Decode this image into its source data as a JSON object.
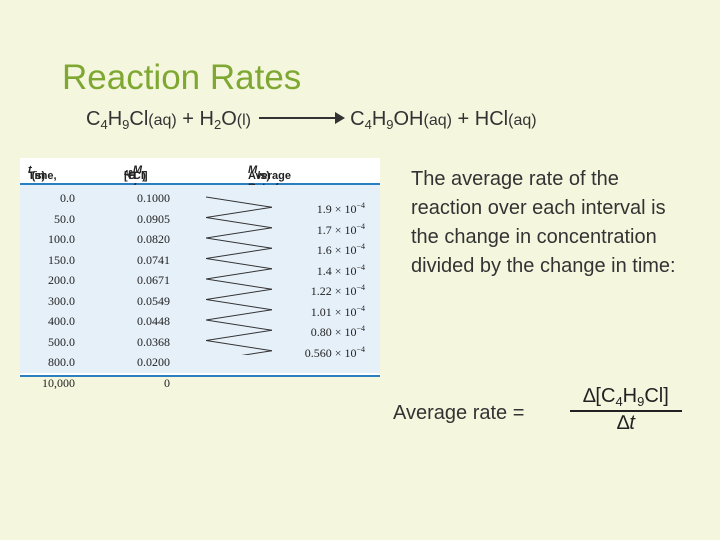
{
  "title": "Reaction Rates",
  "equation": {
    "reactant1": "C4H9Cl",
    "reactant1_parts": [
      "C",
      "4",
      "H",
      "9",
      "Cl"
    ],
    "state1": "(aq)",
    "plus1": "+",
    "reactant2_parts": [
      "H",
      "2",
      "O"
    ],
    "state2": "(l)",
    "product1_parts": [
      "C",
      "4",
      "H",
      "9",
      "OH"
    ],
    "state3": "(aq)",
    "plus2": "+",
    "product2": "HCl",
    "state4": "(aq)"
  },
  "table": {
    "headers": [
      "Time, t(s)",
      "[C4H9Cl] (M)",
      "Average Rate (M/s)"
    ],
    "header_parts": {
      "time": "Time, ",
      "time_var": "t",
      "time_unit": "(s)",
      "conc_open": "[C",
      "conc_4": "4",
      "conc_H": "H",
      "conc_9": "9",
      "conc_close": "Cl] (",
      "conc_M": "M",
      "conc_end": ")",
      "rate": "Average Rate (",
      "rate_M": "M",
      "rate_end": "/s)"
    },
    "times": [
      "0.0",
      "50.0",
      "100.0",
      "150.0",
      "200.0",
      "300.0",
      "400.0",
      "500.0",
      "800.0",
      "10,000"
    ],
    "concentrations": [
      "0.1000",
      "0.0905",
      "0.0820",
      "0.0741",
      "0.0671",
      "0.0549",
      "0.0448",
      "0.0368",
      "0.0200",
      "0"
    ],
    "rates": [
      {
        "mantissa": "1.9 × 10",
        "exp": "−4"
      },
      {
        "mantissa": "1.7 × 10",
        "exp": "−4"
      },
      {
        "mantissa": "1.6 × 10",
        "exp": "−4"
      },
      {
        "mantissa": "1.4 × 10",
        "exp": "−4"
      },
      {
        "mantissa": "1.22 × 10",
        "exp": "−4"
      },
      {
        "mantissa": "1.01 × 10",
        "exp": "−4"
      },
      {
        "mantissa": "0.80 × 10",
        "exp": "−4"
      },
      {
        "mantissa": "0.560 × 10",
        "exp": "−4"
      }
    ]
  },
  "explanation": "The average rate of the reaction over each interval is the change in concentration divided by the change in time:",
  "formula": {
    "label": "Average rate =",
    "numerator_parts": [
      "∆[C",
      "4",
      "H",
      "9",
      "Cl]"
    ],
    "denominator_delta": "∆",
    "denominator_var": "t"
  }
}
